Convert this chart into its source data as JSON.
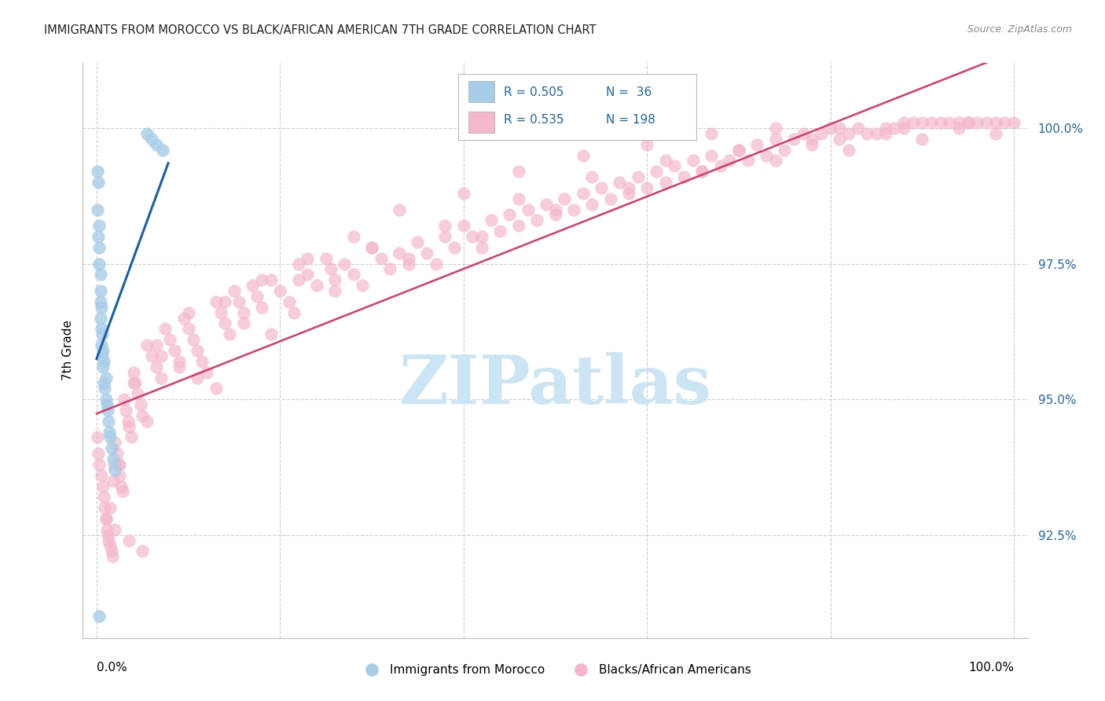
{
  "title": "IMMIGRANTS FROM MOROCCO VS BLACK/AFRICAN AMERICAN 7TH GRADE CORRELATION CHART",
  "source": "Source: ZipAtlas.com",
  "ylabel": "7th Grade",
  "blue_color": "#a8cde8",
  "blue_edge_color": "#7bafd4",
  "pink_color": "#f4b8ca",
  "pink_edge_color": "#e07898",
  "blue_line_color": "#1a5fa8",
  "pink_line_color": "#d63b6e",
  "legend_text_color": "#2166ac",
  "title_color": "#222222",
  "source_color": "#888888",
  "grid_color": "#cccccc",
  "watermark_color": "#cce5f5",
  "xlim": [
    -0.015,
    1.015
  ],
  "ylim": [
    0.906,
    1.012
  ],
  "yticks": [
    0.925,
    0.95,
    0.975,
    1.0
  ],
  "ytick_labels": [
    "92.5%",
    "95.0%",
    "97.5%",
    "100.0%"
  ],
  "blue_x": [
    0.001,
    0.001,
    0.002,
    0.002,
    0.003,
    0.003,
    0.003,
    0.004,
    0.004,
    0.004,
    0.004,
    0.005,
    0.005,
    0.005,
    0.006,
    0.006,
    0.007,
    0.007,
    0.008,
    0.008,
    0.009,
    0.01,
    0.01,
    0.011,
    0.012,
    0.013,
    0.014,
    0.015,
    0.016,
    0.018,
    0.02,
    0.055,
    0.06,
    0.065,
    0.072,
    0.003
  ],
  "blue_y": [
    0.985,
    0.992,
    0.98,
    0.99,
    0.975,
    0.978,
    0.982,
    0.97,
    0.973,
    0.968,
    0.965,
    0.963,
    0.96,
    0.967,
    0.958,
    0.962,
    0.956,
    0.959,
    0.953,
    0.957,
    0.952,
    0.95,
    0.954,
    0.949,
    0.948,
    0.946,
    0.944,
    0.943,
    0.941,
    0.939,
    0.937,
    0.999,
    0.998,
    0.997,
    0.996,
    0.91
  ],
  "pink_x": [
    0.001,
    0.002,
    0.003,
    0.005,
    0.007,
    0.008,
    0.009,
    0.01,
    0.011,
    0.012,
    0.013,
    0.015,
    0.016,
    0.017,
    0.018,
    0.019,
    0.02,
    0.022,
    0.024,
    0.025,
    0.027,
    0.028,
    0.03,
    0.032,
    0.034,
    0.035,
    0.038,
    0.04,
    0.042,
    0.045,
    0.048,
    0.05,
    0.055,
    0.06,
    0.065,
    0.07,
    0.075,
    0.08,
    0.085,
    0.09,
    0.095,
    0.1,
    0.105,
    0.11,
    0.115,
    0.12,
    0.13,
    0.135,
    0.14,
    0.145,
    0.15,
    0.155,
    0.16,
    0.17,
    0.175,
    0.18,
    0.19,
    0.2,
    0.21,
    0.215,
    0.22,
    0.23,
    0.24,
    0.25,
    0.255,
    0.26,
    0.27,
    0.28,
    0.29,
    0.3,
    0.31,
    0.32,
    0.33,
    0.34,
    0.35,
    0.36,
    0.37,
    0.38,
    0.39,
    0.4,
    0.41,
    0.42,
    0.43,
    0.44,
    0.45,
    0.46,
    0.47,
    0.48,
    0.49,
    0.5,
    0.51,
    0.52,
    0.53,
    0.54,
    0.55,
    0.56,
    0.57,
    0.58,
    0.59,
    0.6,
    0.61,
    0.62,
    0.63,
    0.64,
    0.65,
    0.66,
    0.67,
    0.68,
    0.69,
    0.7,
    0.71,
    0.72,
    0.73,
    0.74,
    0.75,
    0.76,
    0.77,
    0.78,
    0.79,
    0.8,
    0.81,
    0.82,
    0.83,
    0.84,
    0.85,
    0.86,
    0.87,
    0.88,
    0.89,
    0.9,
    0.91,
    0.92,
    0.93,
    0.94,
    0.95,
    0.96,
    0.97,
    0.98,
    0.99,
    1.0,
    0.01,
    0.02,
    0.035,
    0.05,
    0.07,
    0.09,
    0.11,
    0.13,
    0.16,
    0.19,
    0.22,
    0.26,
    0.3,
    0.34,
    0.38,
    0.42,
    0.46,
    0.5,
    0.54,
    0.58,
    0.62,
    0.66,
    0.7,
    0.74,
    0.78,
    0.82,
    0.86,
    0.9,
    0.94,
    0.98,
    0.015,
    0.04,
    0.065,
    0.1,
    0.14,
    0.18,
    0.23,
    0.28,
    0.33,
    0.4,
    0.46,
    0.53,
    0.6,
    0.67,
    0.74,
    0.81,
    0.88,
    0.95,
    0.025,
    0.055
  ],
  "pink_y": [
    0.943,
    0.94,
    0.938,
    0.936,
    0.934,
    0.932,
    0.93,
    0.928,
    0.926,
    0.925,
    0.924,
    0.923,
    0.922,
    0.921,
    0.935,
    0.938,
    0.942,
    0.94,
    0.938,
    0.936,
    0.934,
    0.933,
    0.95,
    0.948,
    0.946,
    0.945,
    0.943,
    0.955,
    0.953,
    0.951,
    0.949,
    0.947,
    0.96,
    0.958,
    0.956,
    0.954,
    0.963,
    0.961,
    0.959,
    0.957,
    0.965,
    0.963,
    0.961,
    0.959,
    0.957,
    0.955,
    0.968,
    0.966,
    0.964,
    0.962,
    0.97,
    0.968,
    0.966,
    0.971,
    0.969,
    0.967,
    0.972,
    0.97,
    0.968,
    0.966,
    0.975,
    0.973,
    0.971,
    0.976,
    0.974,
    0.972,
    0.975,
    0.973,
    0.971,
    0.978,
    0.976,
    0.974,
    0.977,
    0.975,
    0.979,
    0.977,
    0.975,
    0.98,
    0.978,
    0.982,
    0.98,
    0.978,
    0.983,
    0.981,
    0.984,
    0.982,
    0.985,
    0.983,
    0.986,
    0.984,
    0.987,
    0.985,
    0.988,
    0.986,
    0.989,
    0.987,
    0.99,
    0.988,
    0.991,
    0.989,
    0.992,
    0.99,
    0.993,
    0.991,
    0.994,
    0.992,
    0.995,
    0.993,
    0.994,
    0.996,
    0.994,
    0.997,
    0.995,
    0.998,
    0.996,
    0.998,
    0.999,
    0.997,
    0.999,
    1.0,
    0.998,
    0.999,
    1.0,
    0.999,
    0.999,
    1.0,
    1.0,
    1.0,
    1.001,
    1.001,
    1.001,
    1.001,
    1.001,
    1.001,
    1.001,
    1.001,
    1.001,
    1.001,
    1.001,
    1.001,
    0.928,
    0.926,
    0.924,
    0.922,
    0.958,
    0.956,
    0.954,
    0.952,
    0.964,
    0.962,
    0.972,
    0.97,
    0.978,
    0.976,
    0.982,
    0.98,
    0.987,
    0.985,
    0.991,
    0.989,
    0.994,
    0.992,
    0.996,
    0.994,
    0.998,
    0.996,
    0.999,
    0.998,
    1.0,
    0.999,
    0.93,
    0.953,
    0.96,
    0.966,
    0.968,
    0.972,
    0.976,
    0.98,
    0.985,
    0.988,
    0.992,
    0.995,
    0.997,
    0.999,
    1.0,
    1.0,
    1.001,
    1.001,
    0.938,
    0.946
  ]
}
